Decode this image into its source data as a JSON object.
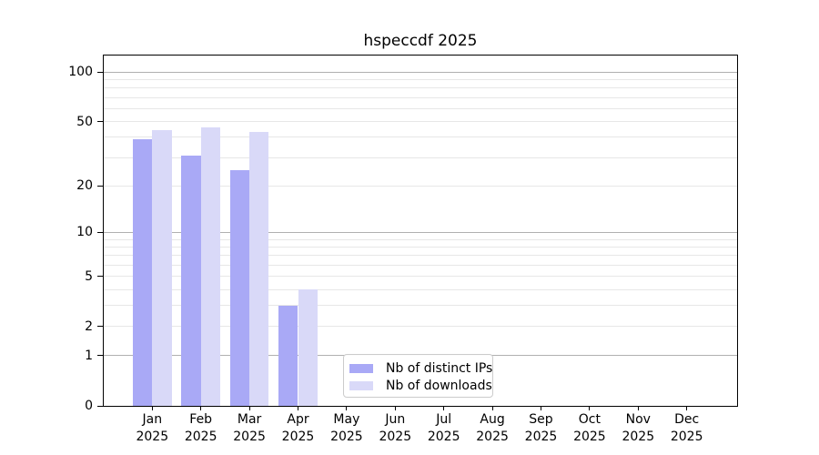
{
  "chart_data": {
    "type": "bar",
    "title": "hspeccdf 2025",
    "categories": [
      "Jan 2025",
      "Feb 2025",
      "Mar 2025",
      "Apr 2025",
      "May 2025",
      "Jun 2025",
      "Jul 2025",
      "Aug 2025",
      "Sep 2025",
      "Oct 2025",
      "Nov 2025",
      "Dec 2025"
    ],
    "series": [
      {
        "name": "Nb of distinct IPs",
        "color": "#a9a9f6",
        "values": [
          39,
          31,
          25,
          3,
          0,
          0,
          0,
          0,
          0,
          0,
          0,
          0
        ]
      },
      {
        "name": "Nb of downloads",
        "color": "#d9d9f8",
        "values": [
          44,
          46,
          43,
          4,
          0,
          0,
          0,
          0,
          0,
          0,
          0,
          0
        ]
      }
    ],
    "xlabel": "",
    "ylabel": "",
    "y_scale": "log(1+y)",
    "ylim": [
      0,
      126
    ],
    "y_tick_labels": [
      100,
      50,
      20,
      10,
      5,
      2,
      1,
      0
    ],
    "grid": "both",
    "grid_major_values": [
      1,
      10,
      100
    ],
    "grid_minor_values": [
      2,
      3,
      4,
      5,
      6,
      7,
      8,
      9,
      20,
      30,
      40,
      50,
      60,
      70,
      80,
      90
    ],
    "legend_position": "inside lower center"
  },
  "colors": {
    "grid_major": "#b0b0b0",
    "grid_minor": "#e7e7e7",
    "spine": "#000000",
    "legend_border": "#cccccc",
    "text": "#000000"
  }
}
